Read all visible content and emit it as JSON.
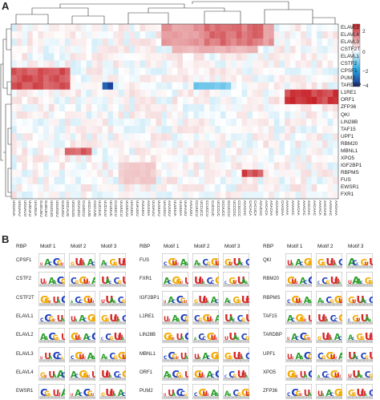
{
  "panel_a": {
    "letter": "A",
    "genes": [
      "ELAVL2",
      "ELAVL4",
      "ELAVL3",
      "CSTF2T",
      "ELAVL1",
      "CSTF2",
      "CPSF1",
      "PUM2",
      "TARDBP",
      "L1RE1",
      "ORF1",
      "ZFP36",
      "QKI",
      "LIN28B",
      "TAF15",
      "UPF1",
      "RBM20",
      "MBNL1",
      "XPO5",
      "IGF2BP1",
      "RBPMS",
      "FUS",
      "EWSR1",
      "FXR1"
    ],
    "kmers": [
      "UGUAUA",
      "UGUAAU",
      "UGUAUU",
      "UUGUAU",
      "UAUGUA",
      "GUGUGU",
      "GUGUAU",
      "UGUGUG",
      "UGUGGU",
      "GUUUGU",
      "UGCAUG",
      "UGCGUG",
      "GCAUGU",
      "CUUGCU",
      "UGCUUG",
      "CGCUUG",
      "UUCUUC",
      "UUCUUU",
      "UCUUUC",
      "CUUUCU",
      "UUUUCU",
      "UUUCUU",
      "UAUUUA",
      "UUAUUU",
      "AUUUAU",
      "AUUUUA",
      "UUUAUU",
      "UUUUAU",
      "UAUUUU",
      "AUUUUU",
      "UUUUUA",
      "UUUUAA",
      "UUAAUU",
      "AAUUUU",
      "CCUUCU",
      "UCCUCC",
      "CCUCCU",
      "CUCCUC",
      "UCCCUC",
      "GCUUCC",
      "GCUCCU",
      "UCCCGC",
      "CCGCCC",
      "ACACAC",
      "CACACA",
      "CACUCA",
      "ACUCAC",
      "AACACA",
      "AGACAA",
      "ACAAGA",
      "CAAGAA",
      "AAAAAA",
      "AAAAAC",
      "AAACAA",
      "AAACAC",
      "AACAAA",
      "AACAAC",
      "AAAACA",
      "AACAAG",
      "AAGAAC",
      "AAGAAA"
    ],
    "colorbar": {
      "ticks": [
        "2",
        "0",
        "−2",
        "−4"
      ],
      "colors": [
        "#c62026",
        "#ffffff",
        "#29aae1",
        "#1b2a8c"
      ],
      "range": [
        -4,
        3
      ]
    },
    "clusters": [
      {
        "genes": [
          0,
          1,
          2
        ],
        "kmers": [
          28,
          48
        ],
        "value": 1.6
      },
      {
        "genes": [
          0,
          1,
          2
        ],
        "kmers": [
          36,
          46
        ],
        "value": 2.2
      },
      {
        "genes": [
          3
        ],
        "kmers": [
          30,
          45
        ],
        "value": 1.2
      },
      {
        "genes": [
          6,
          7,
          8
        ],
        "kmers": [
          0,
          10
        ],
        "value": 2.6
      },
      {
        "genes": [
          8
        ],
        "kmers": [
          34,
          40
        ],
        "value": -1.5
      },
      {
        "genes": [
          8
        ],
        "kmers": [
          17,
          18
        ],
        "value": -4
      },
      {
        "genes": [
          9,
          10
        ],
        "kmers": [
          51,
          61
        ],
        "value": 3
      },
      {
        "genes": [
          17
        ],
        "kmers": [
          10,
          14
        ],
        "value": 2.5
      },
      {
        "genes": [
          20
        ],
        "kmers": [
          43,
          46
        ],
        "value": 2.8
      },
      {
        "genes": [
          19,
          20,
          21
        ],
        "kmers": [
          20,
          26
        ],
        "value": 0.8
      }
    ]
  },
  "panel_b": {
    "letter": "B",
    "columns": [
      {
        "rbp_header": "RBP",
        "motif_headers": [
          "Motif 1",
          "Motif 2",
          "Motif 3"
        ],
        "rbps": [
          "CPSF1",
          "CSTF2",
          "CSTF2T",
          "ELAVL1",
          "ELAVL2",
          "ELAVL3",
          "ELAVL4",
          "EWSR1"
        ]
      },
      {
        "rbp_header": "RBP",
        "motif_headers": [
          "Motif 1",
          "Motif 2",
          "Motif 3"
        ],
        "rbps": [
          "FUS",
          "FXR1",
          "IGF2BP1",
          "L1RE1",
          "LIN28B",
          "MBNL1",
          "ORF1",
          "PUM2"
        ]
      },
      {
        "rbp_header": "RBP",
        "motif_headers": [
          "Motif 1",
          "Motif 2",
          "Motif 3"
        ],
        "rbps": [
          "QKI",
          "RBM20",
          "RBPMS",
          "TAF15",
          "TARDBP",
          "UPF1",
          "XPO5",
          "ZFP36"
        ]
      }
    ],
    "logo_colors": {
      "U": "#d62728",
      "G": "#f2a900",
      "C": "#1f3fbf",
      "A": "#2ca02c"
    }
  }
}
